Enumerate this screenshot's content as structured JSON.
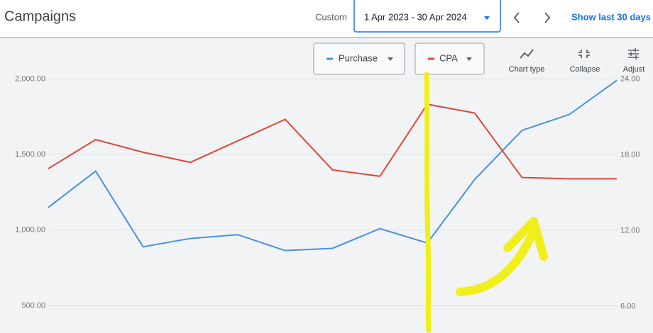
{
  "header": {
    "title": "Campaigns",
    "date_label": "Custom",
    "date_range": "1 Apr 2023 - 30 Apr 2024",
    "link": "Show last 30 days"
  },
  "toolbar": {
    "chart_type": "Chart type",
    "collapse": "Collapse",
    "adjust": "Adjust"
  },
  "chart_data": {
    "type": "line",
    "categories": [
      null,
      null,
      null,
      null,
      null,
      null,
      null,
      null,
      null,
      null,
      null,
      null,
      null
    ],
    "series": [
      {
        "name": "Purchase",
        "color": "#4a90e2",
        "values": [
          1150,
          1390,
          890,
          945,
          970,
          865,
          880,
          1010,
          915,
          1335,
          1660,
          1765,
          1990
        ]
      },
      {
        "name": "CPA",
        "color": "#e0463a",
        "axis": "y2",
        "values": [
          16.9,
          19.2,
          18.2,
          17.4,
          19.1,
          20.8,
          16.8,
          16.3,
          22.0,
          21.3,
          16.2,
          16.1,
          16.1
        ]
      }
    ],
    "ylim": [
      320,
      2100
    ],
    "yticks": [
      {
        "value": 500,
        "label": "500.00"
      },
      {
        "value": 1000,
        "label": "1,000.00"
      },
      {
        "value": 1500,
        "label": "1,500.00"
      },
      {
        "value": 2000,
        "label": "2,000.00"
      }
    ],
    "y2lim": [
      3.9,
      25.2
    ],
    "y2ticks": [
      {
        "value": 6,
        "label": "6.00"
      },
      {
        "value": 12,
        "label": "12.00"
      },
      {
        "value": 18,
        "label": "18.00"
      },
      {
        "value": 24,
        "label": "24.00"
      }
    ],
    "grid": true
  }
}
